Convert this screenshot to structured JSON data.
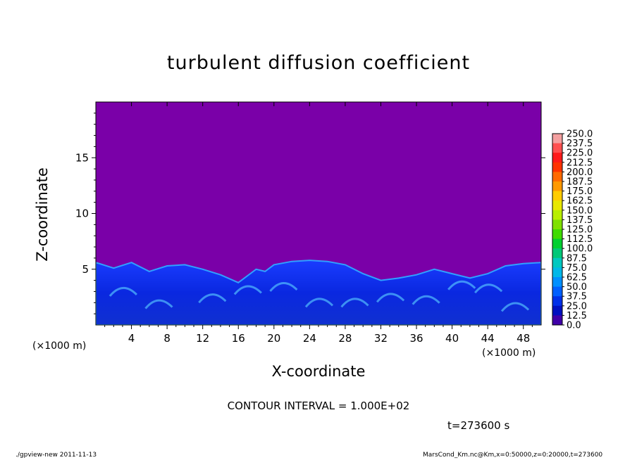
{
  "chart_data": {
    "type": "heatmap",
    "title": "turbulent diffusion coefficient",
    "xlabel": "X-coordinate",
    "ylabel": "Z-coordinate",
    "x_unit_label": "(×1000 m)",
    "y_unit_label": "(×1000 m)",
    "xlim": [
      0,
      50
    ],
    "ylim": [
      0,
      20
    ],
    "x_ticks": [
      "4",
      "8",
      "12",
      "16",
      "20",
      "24",
      "28",
      "32",
      "36",
      "40",
      "44",
      "48"
    ],
    "x_tick_values": [
      4,
      8,
      12,
      16,
      20,
      24,
      28,
      32,
      36,
      40,
      44,
      48
    ],
    "y_ticks": [
      "5",
      "10",
      "15"
    ],
    "y_tick_values": [
      5,
      10,
      15
    ],
    "background_color": "#7a00a8",
    "turbulent_layer_top_profile": {
      "x": [
        0,
        2,
        4,
        6,
        8,
        10,
        12,
        14,
        16,
        17,
        18,
        19,
        20,
        22,
        24,
        26,
        28,
        30,
        32,
        34,
        36,
        38,
        40,
        42,
        44,
        46,
        48,
        50
      ],
      "z": [
        5.6,
        5.1,
        5.6,
        4.8,
        5.3,
        5.4,
        5.0,
        4.5,
        3.8,
        4.4,
        5.0,
        4.8,
        5.4,
        5.7,
        5.8,
        5.7,
        5.4,
        4.6,
        4.0,
        4.2,
        4.5,
        5.0,
        4.6,
        4.2,
        4.6,
        5.3,
        5.5,
        5.6
      ]
    },
    "colorbar": {
      "labels": [
        "250.0",
        "237.5",
        "225.0",
        "212.5",
        "200.0",
        "187.5",
        "175.0",
        "162.5",
        "150.0",
        "137.5",
        "125.0",
        "112.5",
        "100.0",
        "87.5",
        "75.0",
        "62.5",
        "50.0",
        "37.5",
        "25.0",
        "12.5",
        "0.0"
      ],
      "colors": [
        "#f4a0a0",
        "#ff5050",
        "#ff1a1a",
        "#ff3300",
        "#ff6a00",
        "#ff9900",
        "#ffcc00",
        "#e8e800",
        "#b8ee00",
        "#7fe000",
        "#3fdc00",
        "#00d030",
        "#00c878",
        "#00c8c0",
        "#00b8e8",
        "#0090ff",
        "#0060ff",
        "#0030e8",
        "#0010c0",
        "#4000a8"
      ]
    },
    "contour_interval": "CONTOUR INTERVAL = 1.000E+02",
    "time_label": "t=273600  s"
  },
  "footer": {
    "left": "./gpview-new   2011-11-13",
    "right": "MarsCond_Km.nc@Km,x=0:50000,z=0:20000,t=273600"
  }
}
